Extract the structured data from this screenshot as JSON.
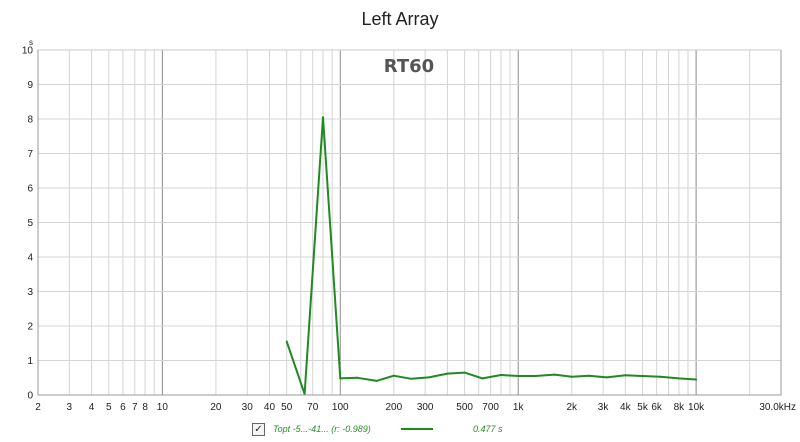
{
  "chart_data": {
    "type": "line",
    "title": "Left Array",
    "overlay_label": "RT60",
    "y_unit": "s",
    "x_unit": "Hz",
    "x_scale": "log",
    "xlim": [
      2,
      30000
    ],
    "ylim": [
      0,
      10
    ],
    "grid": true,
    "x_major_ticks": [
      10,
      100,
      1000,
      10000
    ],
    "x_minor_ticks": [
      2,
      3,
      4,
      5,
      6,
      7,
      8,
      9,
      20,
      30,
      40,
      50,
      60,
      70,
      80,
      90,
      200,
      300,
      400,
      500,
      600,
      700,
      800,
      900,
      2000,
      3000,
      4000,
      5000,
      6000,
      7000,
      8000,
      9000,
      20000,
      30000
    ],
    "x_tick_labels": [
      {
        "value": 2,
        "label": "2"
      },
      {
        "value": 3,
        "label": "3"
      },
      {
        "value": 4,
        "label": "4"
      },
      {
        "value": 5,
        "label": "5"
      },
      {
        "value": 6,
        "label": "6"
      },
      {
        "value": 7,
        "label": "7"
      },
      {
        "value": 8,
        "label": "8"
      },
      {
        "value": 10,
        "label": "10"
      },
      {
        "value": 20,
        "label": "20"
      },
      {
        "value": 30,
        "label": "30"
      },
      {
        "value": 40,
        "label": "40"
      },
      {
        "value": 50,
        "label": "50"
      },
      {
        "value": 70,
        "label": "70"
      },
      {
        "value": 100,
        "label": "100"
      },
      {
        "value": 200,
        "label": "200"
      },
      {
        "value": 300,
        "label": "300"
      },
      {
        "value": 500,
        "label": "500"
      },
      {
        "value": 700,
        "label": "700"
      },
      {
        "value": 1000,
        "label": "1k"
      },
      {
        "value": 2000,
        "label": "2k"
      },
      {
        "value": 3000,
        "label": "3k"
      },
      {
        "value": 4000,
        "label": "4k"
      },
      {
        "value": 5000,
        "label": "5k"
      },
      {
        "value": 6000,
        "label": "6k"
      },
      {
        "value": 8000,
        "label": "8k"
      },
      {
        "value": 10000,
        "label": "10k"
      },
      {
        "value": 30000,
        "label": "30.0kHz"
      }
    ],
    "y_ticks": [
      0,
      1,
      2,
      3,
      4,
      5,
      6,
      7,
      8,
      9,
      10
    ],
    "series": [
      {
        "color": "#1f8a1f",
        "x": [
          50,
          63,
          80,
          100,
          125,
          160,
          200,
          250,
          315,
          400,
          500,
          630,
          800,
          1000,
          1250,
          1600,
          2000,
          2500,
          3150,
          4000,
          5000,
          6300,
          8000,
          10000
        ],
        "y": [
          1.55,
          0.03,
          8.05,
          0.48,
          0.5,
          0.41,
          0.56,
          0.47,
          0.51,
          0.62,
          0.65,
          0.48,
          0.58,
          0.55,
          0.55,
          0.59,
          0.53,
          0.56,
          0.51,
          0.57,
          0.55,
          0.53,
          0.48,
          0.45
        ]
      }
    ]
  },
  "legend": {
    "checkbox_mark": "✓",
    "label": "Topt -5...-41... (r: -0.989)",
    "value": "0.477 s"
  }
}
